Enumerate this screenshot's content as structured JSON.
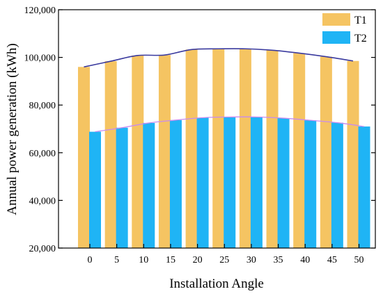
{
  "chart_data": {
    "type": "bar",
    "title": "",
    "xlabel": "Installation Angle",
    "ylabel": "Annual power generation (kWh)",
    "categories": [
      "0",
      "5",
      "10",
      "15",
      "20",
      "25",
      "30",
      "35",
      "40",
      "45",
      "50"
    ],
    "ylim": [
      20000,
      120000
    ],
    "yticks": [
      20000,
      40000,
      60000,
      80000,
      100000,
      120000
    ],
    "ytick_labels": [
      "20,000",
      "40,000",
      "60,000",
      "80,000",
      "100,000",
      "120,000"
    ],
    "grid": false,
    "legend_position": "top-right",
    "series": [
      {
        "name": "T1",
        "values": [
          96000,
          98400,
          100800,
          101000,
          103300,
          103600,
          103600,
          103000,
          101800,
          100300,
          98500
        ],
        "color": "#F5C462",
        "trend_color": "#3A3A9E"
      },
      {
        "name": "T2",
        "values": [
          68800,
          70500,
          72500,
          73700,
          74700,
          75000,
          75000,
          74500,
          73600,
          72600,
          71000
        ],
        "color": "#1FB4F5",
        "trend_color": "#C98BF0"
      }
    ]
  }
}
